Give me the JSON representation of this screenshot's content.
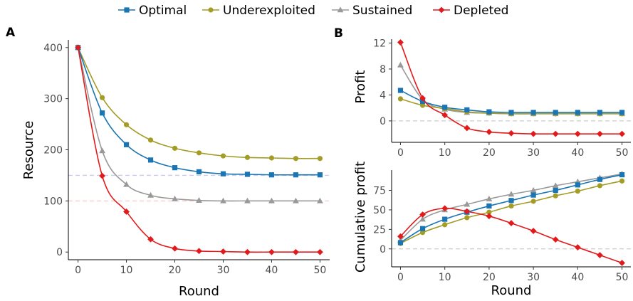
{
  "legend": [
    {
      "name": "Optimal",
      "color": "#1a75b4",
      "marker": "square"
    },
    {
      "name": "Underexploited",
      "color": "#a39d26",
      "marker": "circle"
    },
    {
      "name": "Sustained",
      "color": "#999999",
      "marker": "triangle"
    },
    {
      "name": "Depleted",
      "color": "#e31a1c",
      "marker": "diamond"
    }
  ],
  "chart_data": [
    {
      "panel_label": "A",
      "type": "line",
      "xlabel": "Round",
      "ylabel": "Resource",
      "xlim": [
        -2,
        52
      ],
      "ylim": [
        -15,
        415
      ],
      "xticks": [
        0,
        10,
        20,
        30,
        40,
        50
      ],
      "yticks": [
        0,
        100,
        200,
        300,
        400
      ],
      "reference_lines": [
        {
          "y": 150,
          "color": "#c9c9f2"
        },
        {
          "y": 100,
          "color": "#f6c9c9"
        }
      ],
      "x": [
        0,
        5,
        10,
        15,
        20,
        25,
        30,
        35,
        40,
        45,
        50
      ],
      "series": [
        {
          "name": "Optimal",
          "values": [
            400,
            272,
            210,
            180,
            165,
            157,
            153,
            152,
            151,
            151,
            151
          ]
        },
        {
          "name": "Underexploited",
          "values": [
            400,
            302,
            249,
            219,
            203,
            194,
            188,
            185,
            184,
            183,
            183
          ]
        },
        {
          "name": "Sustained",
          "values": [
            400,
            198,
            132,
            111,
            104,
            101,
            100,
            100,
            100,
            100,
            100
          ]
        },
        {
          "name": "Depleted",
          "values": [
            400,
            149,
            79,
            25,
            7,
            2,
            1,
            0,
            0,
            0,
            0
          ]
        }
      ]
    },
    {
      "panel_label": "B",
      "type": "line",
      "xlabel": "",
      "ylabel": "Profit",
      "xlim": [
        -2,
        52
      ],
      "ylim": [
        -3.3,
        12.6
      ],
      "xticks": [
        0,
        10,
        20,
        30,
        40,
        50
      ],
      "yticks": [
        0,
        4,
        8,
        12
      ],
      "reference_lines": [
        {
          "y": 0,
          "color": "#cccccc"
        }
      ],
      "x": [
        0,
        5,
        10,
        15,
        20,
        25,
        30,
        35,
        40,
        45,
        50
      ],
      "series": [
        {
          "name": "Optimal",
          "values": [
            4.7,
            3.0,
            2.1,
            1.7,
            1.4,
            1.3,
            1.3,
            1.3,
            1.3,
            1.3,
            1.3
          ]
        },
        {
          "name": "Underexploited",
          "values": [
            3.4,
            2.4,
            1.9,
            1.4,
            1.2,
            1.1,
            1.1,
            1.1,
            1.1,
            1.1,
            1.1
          ]
        },
        {
          "name": "Sustained",
          "values": [
            8.6,
            3.3,
            1.8,
            1.3,
            1.2,
            1.1,
            1.1,
            1.1,
            1.1,
            1.1,
            1.1
          ]
        },
        {
          "name": "Depleted",
          "values": [
            12.1,
            3.5,
            0.9,
            -1.1,
            -1.7,
            -1.9,
            -2.0,
            -2.0,
            -2.0,
            -2.0,
            -2.0
          ]
        }
      ]
    },
    {
      "panel_label": "",
      "type": "line",
      "xlabel": "Round",
      "ylabel": "Cumulative profit",
      "xlim": [
        -2,
        52
      ],
      "ylim": [
        -23,
        101
      ],
      "xticks": [
        0,
        10,
        20,
        30,
        40,
        50
      ],
      "yticks": [
        0,
        25,
        50,
        75
      ],
      "reference_lines": [
        {
          "y": 0,
          "color": "#cccccc"
        }
      ],
      "x": [
        0,
        5,
        10,
        15,
        20,
        25,
        30,
        35,
        40,
        45,
        50
      ],
      "series": [
        {
          "name": "Optimal",
          "values": [
            8,
            26,
            38,
            47,
            55,
            62,
            69,
            75,
            82,
            89,
            95
          ]
        },
        {
          "name": "Underexploited",
          "values": [
            7,
            21,
            31,
            40,
            47,
            55,
            61,
            68,
            74,
            81,
            87
          ]
        },
        {
          "name": "Sustained",
          "values": [
            11,
            38,
            50,
            57,
            64,
            70,
            75,
            81,
            86,
            91,
            96
          ]
        },
        {
          "name": "Depleted",
          "values": [
            16,
            44,
            52,
            48,
            42,
            33,
            23,
            12,
            2,
            -8,
            -18
          ]
        }
      ]
    }
  ]
}
